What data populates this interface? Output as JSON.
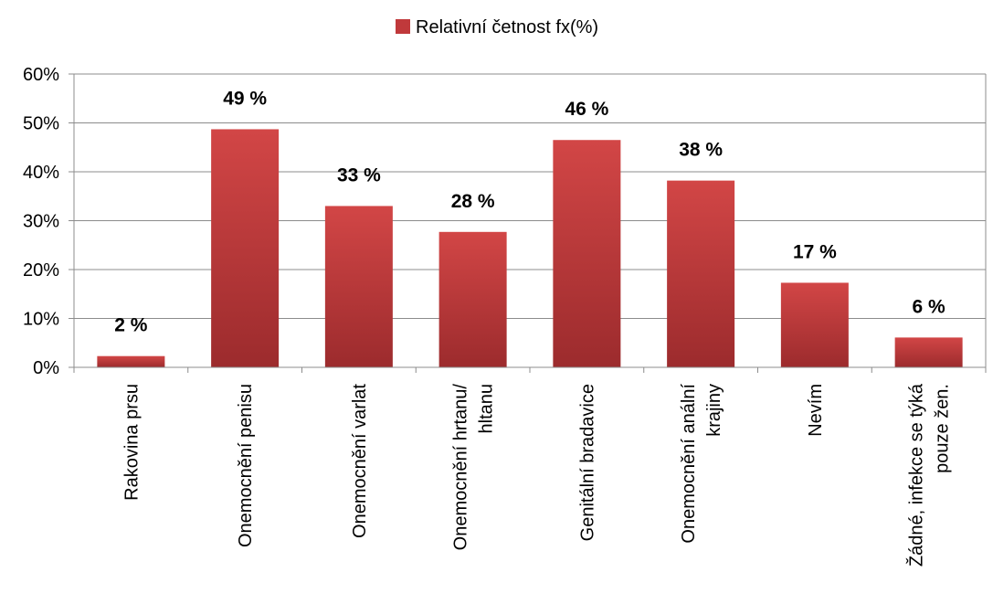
{
  "chart_data": {
    "type": "bar",
    "title": "",
    "xlabel": "",
    "ylabel": "",
    "ylim": [
      0,
      60
    ],
    "y_ticks": [
      "0%",
      "10%",
      "20%",
      "30%",
      "40%",
      "50%",
      "60%"
    ],
    "y_tick_values": [
      0,
      10,
      20,
      30,
      40,
      50,
      60
    ],
    "grid": true,
    "legend_position": "top",
    "categories": [
      [
        "Rakovina prsu"
      ],
      [
        "Onemocnění penisu"
      ],
      [
        "Onemocnění varlat"
      ],
      [
        "Onemocnění hrtanu/",
        "hltanu"
      ],
      [
        "Genitální bradavice"
      ],
      [
        "Onemocnění anální",
        "krajiny"
      ],
      [
        "Nevím"
      ],
      [
        "Žádné, infekce se týká",
        "pouze žen."
      ]
    ],
    "series": [
      {
        "name": "Relativní četnost fx(%)",
        "values": [
          2.3,
          48.7,
          33.0,
          27.7,
          46.5,
          38.2,
          17.3,
          6.1
        ],
        "data_labels": [
          "2 %",
          "49 %",
          "33 %",
          "28 %",
          "46 %",
          "38 %",
          "17 %",
          "6 %"
        ],
        "color": "#c0393b"
      }
    ],
    "colors": {
      "bar_top": "#d24646",
      "bar_bottom": "#9c2b2d",
      "gridline": "#8c8c8c",
      "axis": "#8c8c8c"
    }
  }
}
